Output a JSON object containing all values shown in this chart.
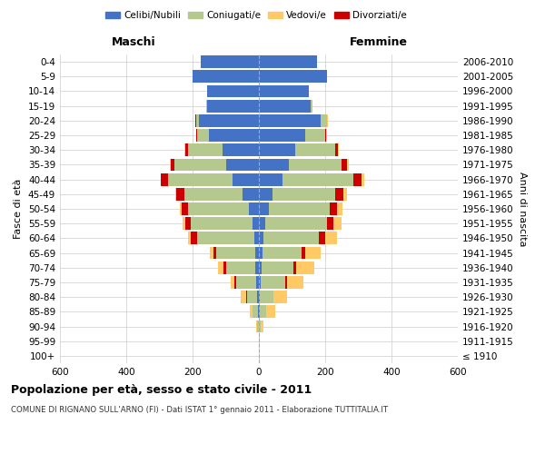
{
  "age_groups": [
    "100+",
    "95-99",
    "90-94",
    "85-89",
    "80-84",
    "75-79",
    "70-74",
    "65-69",
    "60-64",
    "55-59",
    "50-54",
    "45-49",
    "40-44",
    "35-39",
    "30-34",
    "25-29",
    "20-24",
    "15-19",
    "10-14",
    "5-9",
    "0-4"
  ],
  "birth_years": [
    "≤ 1910",
    "1911-1915",
    "1916-1920",
    "1921-1925",
    "1926-1930",
    "1931-1935",
    "1936-1940",
    "1941-1945",
    "1946-1950",
    "1951-1955",
    "1956-1960",
    "1961-1965",
    "1966-1970",
    "1971-1975",
    "1976-1980",
    "1981-1985",
    "1986-1990",
    "1991-1995",
    "1996-2000",
    "2001-2005",
    "2006-2010"
  ],
  "male": {
    "celibe": [
      0,
      0,
      1,
      3,
      5,
      8,
      10,
      10,
      15,
      20,
      30,
      50,
      80,
      100,
      110,
      150,
      180,
      155,
      155,
      200,
      175
    ],
    "coniugato": [
      0,
      1,
      5,
      15,
      30,
      60,
      90,
      120,
      170,
      185,
      185,
      175,
      195,
      155,
      105,
      35,
      10,
      5,
      2,
      0,
      0
    ],
    "vedovo": [
      0,
      0,
      2,
      8,
      18,
      12,
      15,
      10,
      10,
      8,
      5,
      3,
      2,
      2,
      1,
      1,
      0,
      0,
      0,
      0,
      0
    ],
    "divorziato": [
      0,
      0,
      0,
      1,
      2,
      5,
      8,
      8,
      20,
      18,
      18,
      25,
      20,
      12,
      8,
      3,
      1,
      0,
      0,
      0,
      0
    ]
  },
  "female": {
    "nubile": [
      0,
      0,
      1,
      2,
      3,
      5,
      8,
      10,
      15,
      20,
      30,
      40,
      70,
      90,
      110,
      140,
      185,
      155,
      150,
      205,
      175
    ],
    "coniugata": [
      0,
      1,
      5,
      20,
      40,
      75,
      95,
      120,
      165,
      185,
      185,
      190,
      215,
      160,
      120,
      60,
      20,
      8,
      2,
      0,
      0
    ],
    "vedova": [
      0,
      1,
      8,
      25,
      40,
      50,
      55,
      45,
      35,
      25,
      18,
      12,
      8,
      5,
      3,
      2,
      1,
      0,
      0,
      0,
      0
    ],
    "divorziata": [
      0,
      0,
      0,
      1,
      2,
      5,
      8,
      10,
      20,
      20,
      20,
      25,
      25,
      15,
      8,
      3,
      1,
      0,
      0,
      0,
      0
    ]
  },
  "colors": {
    "celibe": "#4472c4",
    "coniugato": "#b5c98e",
    "vedovo": "#ffc966",
    "divorziato": "#cc0000"
  },
  "xlim": 600,
  "title": "Popolazione per età, sesso e stato civile - 2011",
  "subtitle": "COMUNE DI RIGNANO SULL'ARNO (FI) - Dati ISTAT 1° gennaio 2011 - Elaborazione TUTTITALIA.IT",
  "ylabel": "Fasce di età",
  "right_ylabel": "Anni di nascita",
  "legend_labels": [
    "Celibi/Nubili",
    "Coniugati/e",
    "Vedovi/e",
    "Divorziati/e"
  ],
  "maschi_label": "Maschi",
  "femmine_label": "Femmine",
  "xticks": [
    -600,
    -400,
    -200,
    0,
    200,
    400,
    600
  ],
  "xtick_labels": [
    "600",
    "400",
    "200",
    "0",
    "200",
    "400",
    "600"
  ]
}
